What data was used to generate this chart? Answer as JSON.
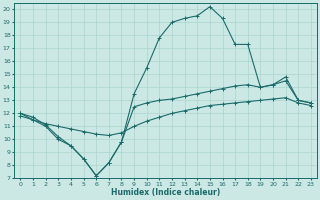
{
  "xlabel": "Humidex (Indice chaleur)",
  "xlim": [
    -0.5,
    23.5
  ],
  "ylim": [
    7,
    20.5
  ],
  "yticks": [
    7,
    8,
    9,
    10,
    11,
    12,
    13,
    14,
    15,
    16,
    17,
    18,
    19,
    20
  ],
  "xticks": [
    0,
    1,
    2,
    3,
    4,
    5,
    6,
    7,
    8,
    9,
    10,
    11,
    12,
    13,
    14,
    15,
    16,
    17,
    18,
    19,
    20,
    21,
    22,
    23
  ],
  "bg_color": "#cce8e4",
  "line_color": "#1a6b6b",
  "grid_color": "#aad4ce",
  "curve_x": [
    0,
    1,
    2,
    3,
    4,
    5,
    6,
    7,
    8,
    9,
    10,
    11,
    12,
    13,
    14,
    15,
    16,
    17,
    18,
    19,
    20,
    21,
    22,
    23
  ],
  "curve_y": [
    12.0,
    11.5,
    11.0,
    10.0,
    9.5,
    8.5,
    7.2,
    8.2,
    9.8,
    13.5,
    15.5,
    17.8,
    19.0,
    19.3,
    19.5,
    20.2,
    19.3,
    17.3,
    17.3,
    14.0,
    14.2,
    14.8,
    13.0,
    12.8
  ],
  "line1_x": [
    0,
    1,
    2,
    3,
    4,
    5,
    6,
    7,
    8,
    9,
    10,
    11,
    12,
    13,
    14,
    15,
    16,
    17,
    18,
    19,
    20,
    21,
    22,
    23
  ],
  "line1_y": [
    12.0,
    11.7,
    11.1,
    10.2,
    9.5,
    8.5,
    7.2,
    8.2,
    9.8,
    12.5,
    12.8,
    13.0,
    13.1,
    13.3,
    13.5,
    13.7,
    13.9,
    14.1,
    14.2,
    14.0,
    14.2,
    14.5,
    13.0,
    12.8
  ],
  "line2_x": [
    0,
    1,
    2,
    3,
    4,
    5,
    6,
    7,
    8,
    9,
    10,
    11,
    12,
    13,
    14,
    15,
    16,
    17,
    18,
    19,
    20,
    21,
    22,
    23
  ],
  "line2_y": [
    11.8,
    11.5,
    11.2,
    11.0,
    10.8,
    10.6,
    10.4,
    10.3,
    10.5,
    11.0,
    11.4,
    11.7,
    12.0,
    12.2,
    12.4,
    12.6,
    12.7,
    12.8,
    12.9,
    13.0,
    13.1,
    13.2,
    12.8,
    12.6
  ]
}
